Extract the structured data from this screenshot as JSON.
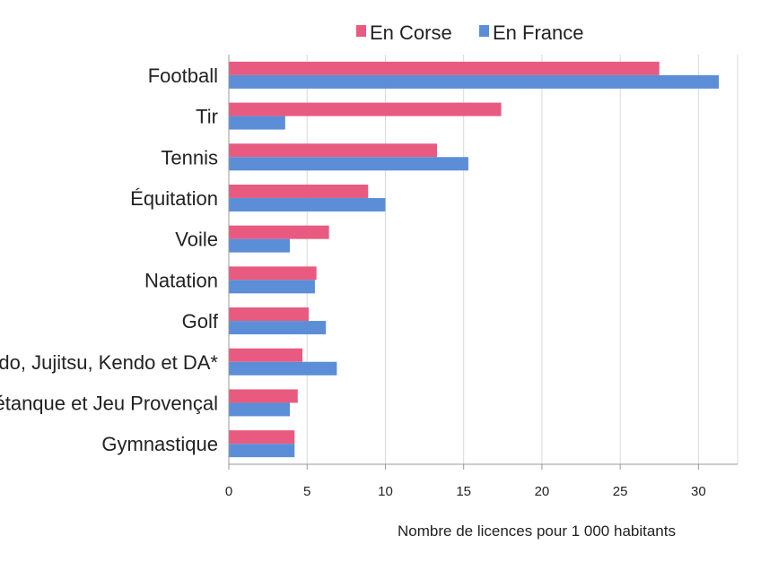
{
  "chart_data": {
    "type": "bar",
    "orientation": "horizontal",
    "categories": [
      "Football",
      "Tir",
      "Tennis",
      "Équitation",
      "Voile",
      "Natation",
      "Golf",
      "Judo, Jujitsu, Kendo et DA*",
      "Pétanque et Jeu Provençal",
      "Gymnastique"
    ],
    "series": [
      {
        "name": "En Corse",
        "color": "#e85a80",
        "values": [
          27.5,
          17.4,
          13.3,
          8.9,
          6.4,
          5.6,
          5.1,
          4.7,
          4.4,
          4.2
        ]
      },
      {
        "name": "En France",
        "color": "#5b8ed6",
        "values": [
          31.3,
          3.6,
          15.3,
          10.0,
          3.9,
          5.5,
          6.2,
          6.9,
          3.9,
          4.2
        ]
      }
    ],
    "x_ticks": [
      "0",
      "5",
      "10",
      "15",
      "20",
      "25",
      "30"
    ],
    "xlim": [
      0,
      32.5
    ],
    "xlabel": "Nombre de licences pour 1 000 habitants",
    "ylabel": "",
    "title": "",
    "grid": "vertical",
    "legend_position": "top"
  }
}
